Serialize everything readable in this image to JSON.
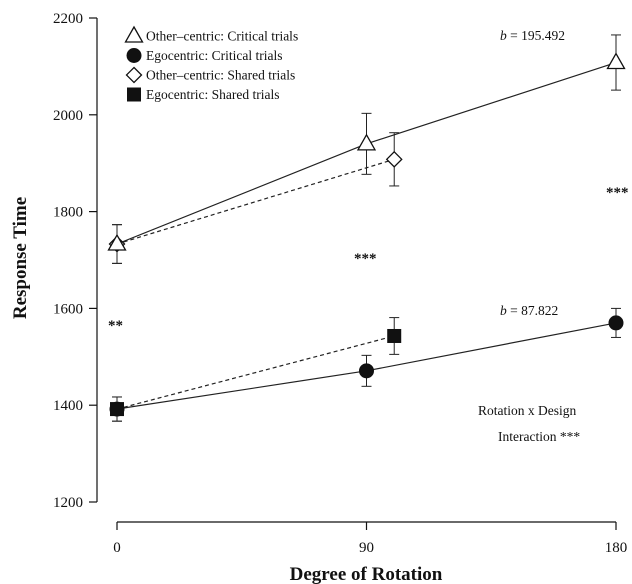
{
  "chart_data": {
    "type": "line",
    "title": "",
    "xlabel": "Degree of Rotation",
    "ylabel": "Response Time",
    "xlim": [
      0,
      180
    ],
    "ylim": [
      1200,
      2200
    ],
    "x_ticks": [
      0,
      90,
      180
    ],
    "x_tick_labels": [
      "0",
      "90",
      "180"
    ],
    "y_ticks": [
      1200,
      1400,
      1600,
      1800,
      2000,
      2200
    ],
    "y_tick_labels": [
      "1200",
      "1400",
      "1600",
      "1800",
      "2000",
      "2200"
    ],
    "grid": false,
    "legend_position": "top-left",
    "series": [
      {
        "name": "Other–centric: Critical trials",
        "marker": "triangle-open",
        "line": "solid",
        "x": [
          0,
          90,
          180
        ],
        "y": [
          1733,
          1940,
          2108
        ],
        "err": [
          40,
          63,
          57
        ]
      },
      {
        "name": "Egocentric: Critical trials",
        "marker": "circle-filled",
        "line": "solid",
        "x": [
          0,
          90,
          180
        ],
        "y": [
          1392,
          1471,
          1570
        ],
        "err": [
          25,
          32,
          30
        ]
      },
      {
        "name": "Other–centric: Shared trials",
        "marker": "diamond-open",
        "line": "dashed",
        "x": [
          0,
          100
        ],
        "y": [
          1733,
          1908
        ],
        "err": [
          40,
          55
        ]
      },
      {
        "name": "Egocentric: Shared trials",
        "marker": "square-filled",
        "line": "dashed",
        "x": [
          0,
          100
        ],
        "y": [
          1392,
          1543
        ],
        "err": [
          25,
          38
        ]
      }
    ],
    "annotations": [
      {
        "text": "b = 195.492",
        "prefix": "b",
        "suffix": " = 195.492",
        "x": 145,
        "y": 2158
      },
      {
        "text": "b = 87.822",
        "prefix": "b",
        "suffix": " = 87.822",
        "x": 145,
        "y": 1598
      },
      {
        "text": "**",
        "x": -1,
        "y": 1558,
        "style": "stars"
      },
      {
        "text": "***",
        "x": 90,
        "y": 1300,
        "style": "stars",
        "y_value": 1698
      },
      {
        "text": "***",
        "x": 180,
        "y": 1830,
        "style": "stars"
      },
      {
        "text": "Rotation x Design",
        "x": 150,
        "y": 1381
      },
      {
        "text": "Interaction ***",
        "x": 151,
        "y": 1329
      }
    ]
  }
}
